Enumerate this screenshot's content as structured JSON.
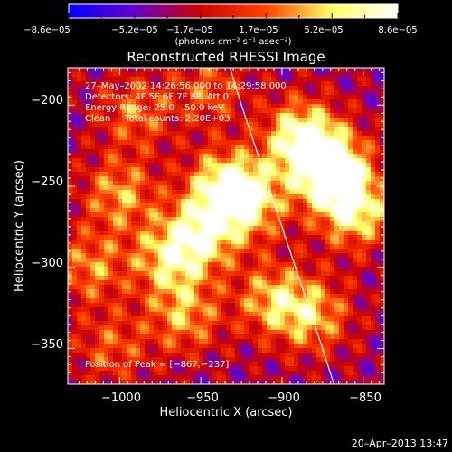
{
  "chart_data": {
    "type": "heatmap",
    "title": "Reconstructed RHESSI Image",
    "xlabel": "Heliocentric X (arcsec)",
    "ylabel": "Heliocentric Y (arcsec)",
    "xlim": [
      -1032,
      -837
    ],
    "ylim": [
      -372,
      -177
    ],
    "x_ticks": [
      -1000,
      -950,
      -900,
      -850
    ],
    "x_tick_labels": [
      "−1000",
      "−950",
      "−900",
      "−850"
    ],
    "y_ticks": [
      -200,
      -250,
      -300,
      -350
    ],
    "y_tick_labels": [
      "−200",
      "−250",
      "−300",
      "−350"
    ],
    "colorbar": {
      "range": [
        -8.6e-05,
        8.6e-05
      ],
      "tick_labels": [
        "−8.6e−05",
        "−5.2e−05",
        "−1.7e−05",
        "1.7e−05",
        "5.2e−05",
        "8.6e−05"
      ],
      "units": "(photons cm⁻² s⁻¹ asec⁻²)",
      "colormap": [
        "#0000ff",
        "#6600cc",
        "#cc0000",
        "#ff4400",
        "#ffff66",
        "#ffffff"
      ]
    },
    "annotations": [
      "27–May–2002 14:26:56.000 to 14:29:58.000",
      "Detectors: 4F 5F 6F 7F 8F, Att 0",
      "Energy Range: 25.0 – 50.0 keV",
      "Clean     Total counts: 2.20E+03"
    ],
    "peak_label": "Position of Peak = [−867,−237]",
    "peak": [
      -867,
      -237
    ],
    "limb_curve": {
      "x": [
        -932,
        -925,
        -915,
        -905,
        -895,
        -885,
        -875,
        -868
      ],
      "y": [
        -177,
        -200,
        -230,
        -260,
        -290,
        -320,
        -350,
        -372
      ]
    },
    "sources": [
      {
        "x": -870,
        "y": -240,
        "amp": 1.0
      },
      {
        "x": -888,
        "y": -220,
        "amp": 0.8
      },
      {
        "x": -855,
        "y": -265,
        "amp": 0.7
      },
      {
        "x": -920,
        "y": -260,
        "amp": 0.6
      },
      {
        "x": -935,
        "y": -250,
        "amp": 0.7
      },
      {
        "x": -950,
        "y": -280,
        "amp": 0.65
      },
      {
        "x": -970,
        "y": -295,
        "amp": 0.55
      },
      {
        "x": -1000,
        "y": -255,
        "amp": 0.5
      },
      {
        "x": -1018,
        "y": -300,
        "amp": 0.45
      },
      {
        "x": -990,
        "y": -205,
        "amp": 0.4
      },
      {
        "x": -960,
        "y": -330,
        "amp": 0.5
      },
      {
        "x": -905,
        "y": -320,
        "amp": 0.55
      },
      {
        "x": -880,
        "y": -330,
        "amp": 0.5
      },
      {
        "x": -1005,
        "y": -350,
        "amp": 0.35
      },
      {
        "x": -945,
        "y": -190,
        "amp": 0.35
      }
    ]
  },
  "footer": {
    "timestamp": "20–Apr–2013 13:47"
  }
}
